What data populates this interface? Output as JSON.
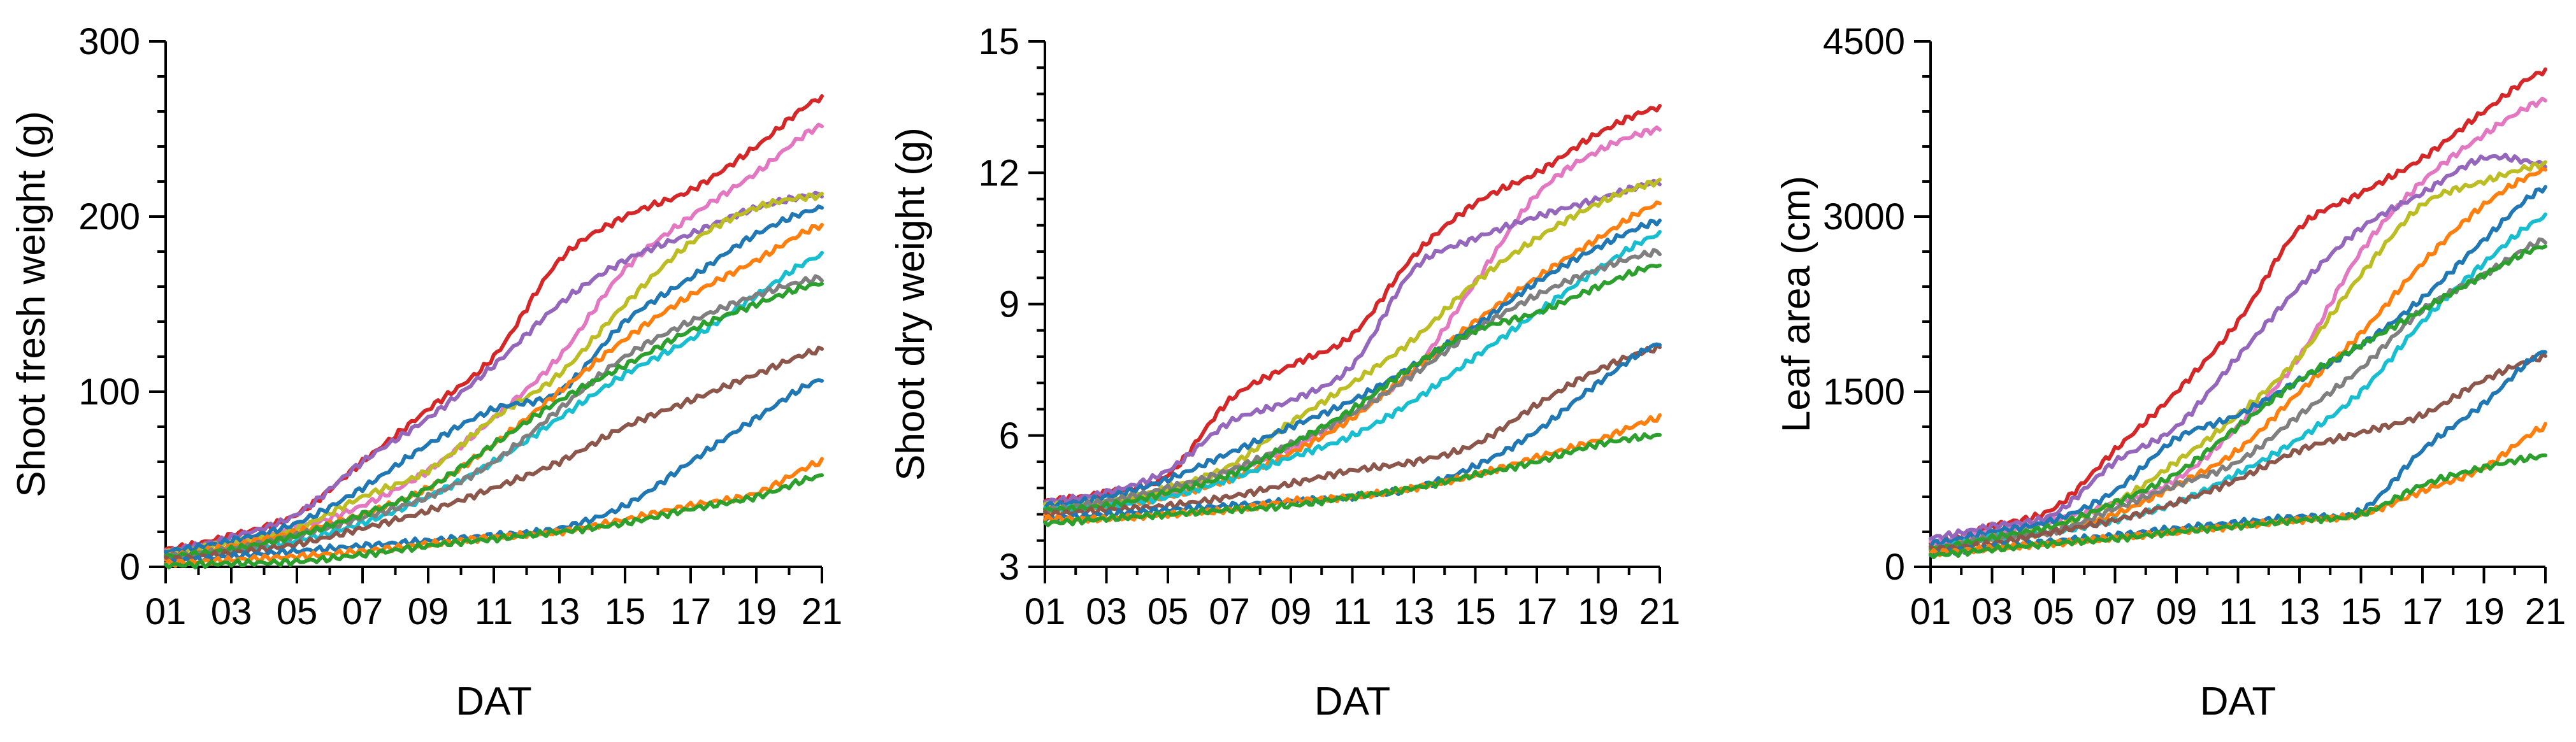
{
  "palette": [
    "#1f77b4",
    "#ff7f0e",
    "#2ca02c",
    "#d62728",
    "#9467bd",
    "#8c564b",
    "#e377c2",
    "#7f7f7f",
    "#bcbd22",
    "#17becf"
  ],
  "chart_data": [
    {
      "type": "line",
      "xlabel": "DAT",
      "ylabel": "Shoot fresh weight (g)",
      "xlim": [
        1,
        21
      ],
      "ylim": [
        0,
        300
      ],
      "xticks": [
        "01",
        "03",
        "05",
        "07",
        "09",
        "11",
        "13",
        "15",
        "17",
        "19",
        "21"
      ],
      "yticks": [
        "0",
        "100",
        "200",
        "300"
      ],
      "x": [
        1,
        3,
        5,
        7,
        9,
        11,
        13,
        15,
        17,
        19,
        21
      ],
      "series": [
        {
          "color": "#d62728",
          "values": [
            10,
            18,
            30,
            60,
            90,
            120,
            175,
            200,
            215,
            240,
            268
          ]
        },
        {
          "color": "#e377c2",
          "values": [
            8,
            14,
            22,
            35,
            55,
            85,
            120,
            170,
            200,
            225,
            252
          ]
        },
        {
          "color": "#9467bd",
          "values": [
            9,
            17,
            30,
            60,
            85,
            115,
            150,
            175,
            190,
            205,
            213
          ]
        },
        {
          "color": "#bcbd22",
          "values": [
            8,
            14,
            22,
            40,
            55,
            85,
            110,
            150,
            185,
            205,
            212
          ]
        },
        {
          "color": "#1f77b4",
          "values": [
            9,
            15,
            25,
            45,
            70,
            90,
            100,
            140,
            165,
            190,
            205
          ]
        },
        {
          "color": "#ff7f0e",
          "values": [
            6,
            12,
            20,
            30,
            45,
            70,
            100,
            130,
            155,
            175,
            195
          ]
        },
        {
          "color": "#17becf",
          "values": [
            5,
            9,
            15,
            25,
            40,
            60,
            85,
            110,
            130,
            155,
            178
          ]
        },
        {
          "color": "#7f7f7f",
          "values": [
            6,
            10,
            18,
            28,
            40,
            60,
            90,
            120,
            140,
            155,
            165
          ]
        },
        {
          "color": "#2ca02c",
          "values": [
            6,
            10,
            18,
            30,
            45,
            70,
            95,
            115,
            135,
            150,
            162
          ]
        },
        {
          "color": "#8c564b",
          "values": [
            4,
            8,
            13,
            22,
            32,
            45,
            60,
            80,
            95,
            110,
            124
          ]
        },
        {
          "color": "#1f77b4",
          "values": [
            3,
            6,
            9,
            12,
            15,
            18,
            22,
            35,
            60,
            85,
            107
          ]
        },
        {
          "color": "#ff7f0e",
          "values": [
            2,
            4,
            6,
            9,
            13,
            17,
            20,
            27,
            35,
            42,
            60
          ]
        },
        {
          "color": "#2ca02c",
          "values": [
            1,
            2,
            3,
            7,
            12,
            16,
            20,
            25,
            33,
            40,
            52
          ]
        }
      ]
    },
    {
      "type": "line",
      "xlabel": "DAT",
      "ylabel": "Shoot dry weight (g)",
      "xlim": [
        1,
        21
      ],
      "ylim": [
        3,
        15
      ],
      "xticks": [
        "01",
        "03",
        "05",
        "07",
        "09",
        "11",
        "13",
        "15",
        "17",
        "19",
        "21"
      ],
      "yticks": [
        "3",
        "6",
        "9",
        "12",
        "15"
      ],
      "x": [
        1,
        3,
        5,
        7,
        9,
        11,
        13,
        15,
        17,
        19,
        21
      ],
      "series": [
        {
          "color": "#d62728",
          "values": [
            4.5,
            4.7,
            5.1,
            6.8,
            7.6,
            8.3,
            10.1,
            11.3,
            12.0,
            12.9,
            13.5
          ]
        },
        {
          "color": "#e377c2",
          "values": [
            4.4,
            4.5,
            4.7,
            5.2,
            5.7,
            6.5,
            7.5,
            9.5,
            11.5,
            12.5,
            13.0
          ]
        },
        {
          "color": "#9467bd",
          "values": [
            4.5,
            4.7,
            5.2,
            6.3,
            6.8,
            7.6,
            9.8,
            10.5,
            11.0,
            11.4,
            11.8
          ]
        },
        {
          "color": "#bcbd22",
          "values": [
            4.4,
            4.5,
            4.8,
            5.3,
            6.3,
            7.2,
            8.2,
            9.5,
            10.5,
            11.3,
            11.8
          ]
        },
        {
          "color": "#ff7f0e",
          "values": [
            4.2,
            4.4,
            4.6,
            5.0,
            5.6,
            6.4,
            7.5,
            8.6,
            9.6,
            10.5,
            11.3
          ]
        },
        {
          "color": "#1f77b4",
          "values": [
            4.4,
            4.6,
            5.0,
            5.6,
            6.2,
            6.8,
            7.6,
            8.5,
            9.5,
            10.3,
            10.9
          ]
        },
        {
          "color": "#17becf",
          "values": [
            4.3,
            4.4,
            4.6,
            5.0,
            5.5,
            6.0,
            6.8,
            7.8,
            8.8,
            9.8,
            10.6
          ]
        },
        {
          "color": "#7f7f7f",
          "values": [
            4.3,
            4.5,
            4.8,
            5.2,
            5.8,
            6.5,
            7.4,
            8.4,
            9.2,
            9.8,
            10.2
          ]
        },
        {
          "color": "#2ca02c",
          "values": [
            4.3,
            4.4,
            4.7,
            5.1,
            5.8,
            6.6,
            7.6,
            8.4,
            8.8,
            9.4,
            9.9
          ]
        },
        {
          "color": "#8c564b",
          "values": [
            4.2,
            4.3,
            4.4,
            4.6,
            4.9,
            5.2,
            5.4,
            5.8,
            6.7,
            7.5,
            8.0
          ]
        },
        {
          "color": "#1f77b4",
          "values": [
            4.1,
            4.2,
            4.3,
            4.4,
            4.5,
            4.6,
            4.8,
            5.3,
            6.1,
            7.2,
            8.1
          ]
        },
        {
          "color": "#ff7f0e",
          "values": [
            4.1,
            4.1,
            4.2,
            4.3,
            4.5,
            4.6,
            4.8,
            5.1,
            5.5,
            5.9,
            6.4
          ]
        },
        {
          "color": "#2ca02c",
          "values": [
            4.0,
            4.1,
            4.2,
            4.3,
            4.4,
            4.6,
            4.8,
            5.1,
            5.4,
            5.8,
            6.0
          ]
        }
      ]
    },
    {
      "type": "line",
      "xlabel": "DAT",
      "ylabel": "Leaf area (cm)",
      "xlim": [
        1,
        21
      ],
      "ylim": [
        0,
        4500
      ],
      "xticks": [
        "01",
        "03",
        "05",
        "07",
        "09",
        "11",
        "13",
        "15",
        "17",
        "19",
        "21"
      ],
      "yticks": [
        "0",
        "1500",
        "3000",
        "4500"
      ],
      "x": [
        1,
        3,
        5,
        7,
        9,
        11,
        13,
        15,
        17,
        19,
        21
      ],
      "series": [
        {
          "color": "#d62728",
          "values": [
            200,
            350,
            500,
            1000,
            1500,
            2100,
            2900,
            3200,
            3500,
            3900,
            4250
          ]
        },
        {
          "color": "#e377c2",
          "values": [
            200,
            300,
            400,
            550,
            750,
            1200,
            1800,
            2700,
            3300,
            3700,
            4000
          ]
        },
        {
          "color": "#9467bd",
          "values": [
            250,
            350,
            450,
            900,
            1200,
            1800,
            2400,
            2900,
            3200,
            3500,
            3450
          ]
        },
        {
          "color": "#bcbd22",
          "values": [
            150,
            250,
            350,
            550,
            900,
            1300,
            1800,
            2500,
            3100,
            3300,
            3450
          ]
        },
        {
          "color": "#ff7f0e",
          "values": [
            150,
            250,
            300,
            450,
            700,
            1000,
            1500,
            2000,
            2600,
            3100,
            3400
          ]
        },
        {
          "color": "#1f77b4",
          "values": [
            200,
            300,
            400,
            650,
            1100,
            1300,
            1600,
            1900,
            2300,
            2800,
            3250
          ]
        },
        {
          "color": "#17becf",
          "values": [
            150,
            250,
            300,
            400,
            550,
            800,
            1100,
            1500,
            2100,
            2600,
            3000
          ]
        },
        {
          "color": "#7f7f7f",
          "values": [
            150,
            250,
            300,
            500,
            700,
            900,
            1300,
            1700,
            2200,
            2500,
            2800
          ]
        },
        {
          "color": "#2ca02c",
          "values": [
            150,
            250,
            350,
            550,
            800,
            1200,
            1600,
            1900,
            2200,
            2500,
            2750
          ]
        },
        {
          "color": "#8c564b",
          "values": [
            150,
            200,
            300,
            400,
            550,
            750,
            1000,
            1150,
            1300,
            1600,
            1800
          ]
        },
        {
          "color": "#1f77b4",
          "values": [
            120,
            170,
            220,
            270,
            330,
            380,
            430,
            480,
            1000,
            1400,
            1850
          ]
        },
        {
          "color": "#ff7f0e",
          "values": [
            120,
            160,
            200,
            250,
            300,
            350,
            400,
            450,
            650,
            850,
            1200
          ]
        },
        {
          "color": "#2ca02c",
          "values": [
            100,
            150,
            200,
            240,
            300,
            350,
            400,
            450,
            700,
            850,
            950
          ]
        }
      ]
    }
  ]
}
